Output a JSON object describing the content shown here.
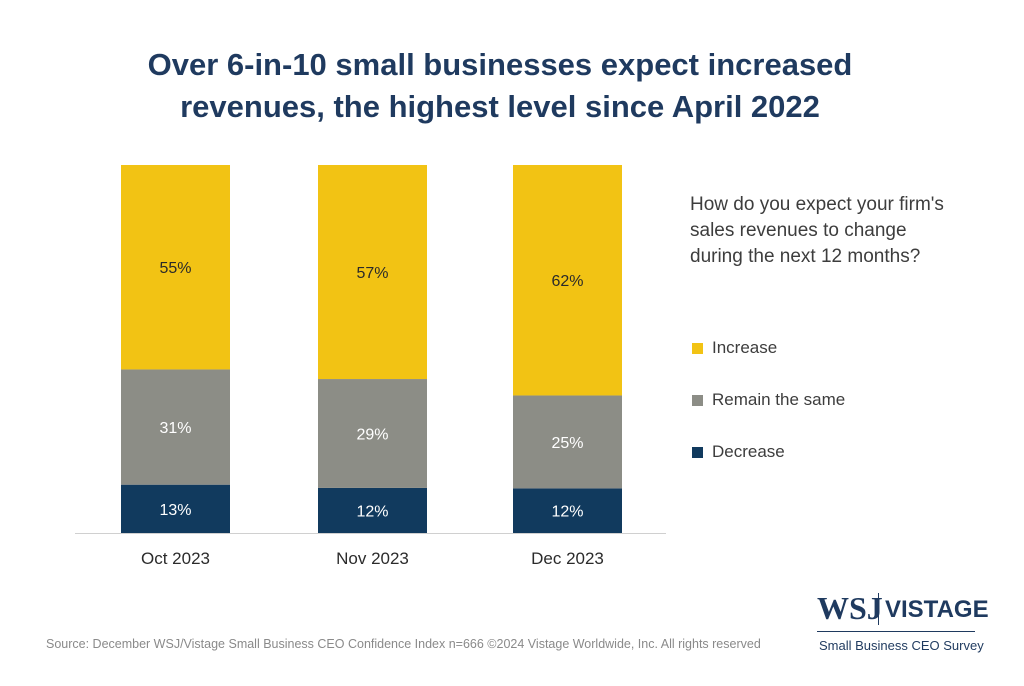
{
  "title_lines": [
    "Over 6-in-10 small businesses expect increased",
    "revenues, the highest level since April 2022"
  ],
  "legend": {
    "question": "How do you expect your firm's sales revenues to change during the next 12 months?",
    "items": [
      {
        "label": "Increase",
        "color": "#f2c314"
      },
      {
        "label": "Remain the same",
        "color": "#8c8d86"
      },
      {
        "label": "Decrease",
        "color": "#113a5e"
      }
    ]
  },
  "source": "Source: December WSJ/Vistage Small Business CEO Confidence Index n=666 ©2024 Vistage Worldwide, Inc. All rights reserved",
  "logo": {
    "wsj": "WSJ",
    "vistage": "VISTAGE",
    "subtitle": "Small Business CEO Survey"
  },
  "chart_data": {
    "type": "bar",
    "stacked": true,
    "categories": [
      "Oct 2023",
      "Nov 2023",
      "Dec 2023"
    ],
    "series": [
      {
        "name": "Decrease",
        "values": [
          13,
          12,
          12
        ],
        "labels": [
          "13%",
          "12%",
          "12%"
        ],
        "color": "#113a5e",
        "label_color": "#ffffff"
      },
      {
        "name": "Remain the same",
        "values": [
          31,
          29,
          25
        ],
        "labels": [
          "31%",
          "29%",
          "25%"
        ],
        "color": "#8c8d86",
        "label_color": "#ffffff"
      },
      {
        "name": "Increase",
        "values": [
          55,
          57,
          62
        ],
        "labels": [
          "55%",
          "57%",
          "62%"
        ],
        "color": "#f2c314",
        "label_color": "#2a2a2a"
      }
    ],
    "ylim": [
      0,
      100
    ],
    "grid": false,
    "legend_position": "right"
  }
}
